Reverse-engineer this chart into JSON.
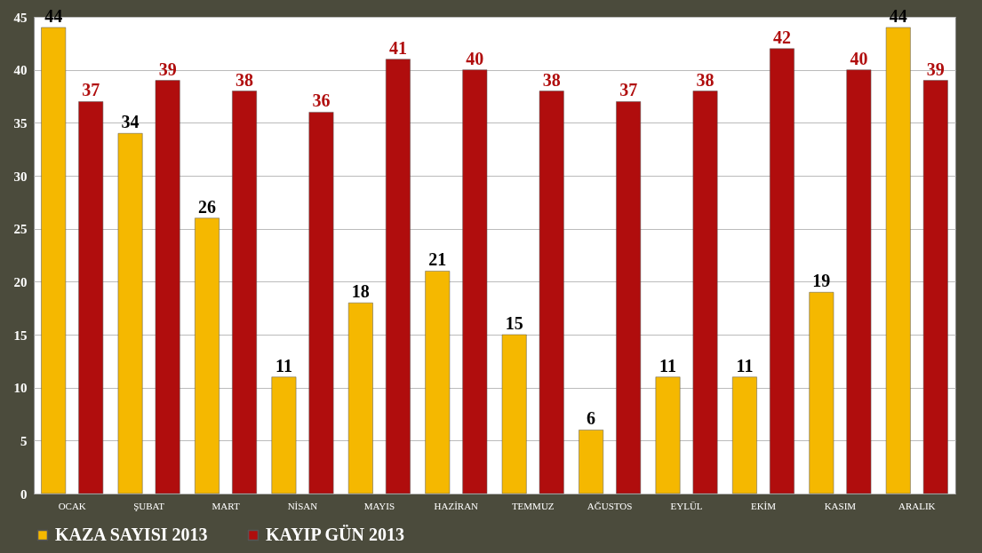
{
  "chart_data": {
    "type": "bar",
    "categories": [
      "OCAK",
      "ŞUBAT",
      "MART",
      "NİSAN",
      "MAYIS",
      "HAZİRAN",
      "TEMMUZ",
      "AĞUSTOS",
      "EYLÜL",
      "EKİM",
      "KASIM",
      "ARALIK"
    ],
    "series": [
      {
        "name": "KAZA SAYISI 2013",
        "color": "#f5b800",
        "values": [
          44,
          34,
          26,
          11,
          18,
          21,
          15,
          6,
          11,
          11,
          19,
          44
        ]
      },
      {
        "name": "KAYIP GÜN 2013",
        "color": "#b00d0d",
        "values": [
          37,
          39,
          38,
          36,
          41,
          40,
          38,
          37,
          38,
          42,
          40,
          39
        ]
      }
    ],
    "ylim": [
      0,
      45
    ],
    "yticks": [
      0,
      5,
      10,
      15,
      20,
      25,
      30,
      35,
      40,
      45
    ],
    "grid": "y",
    "legend": "bottom",
    "data_labels": true
  }
}
